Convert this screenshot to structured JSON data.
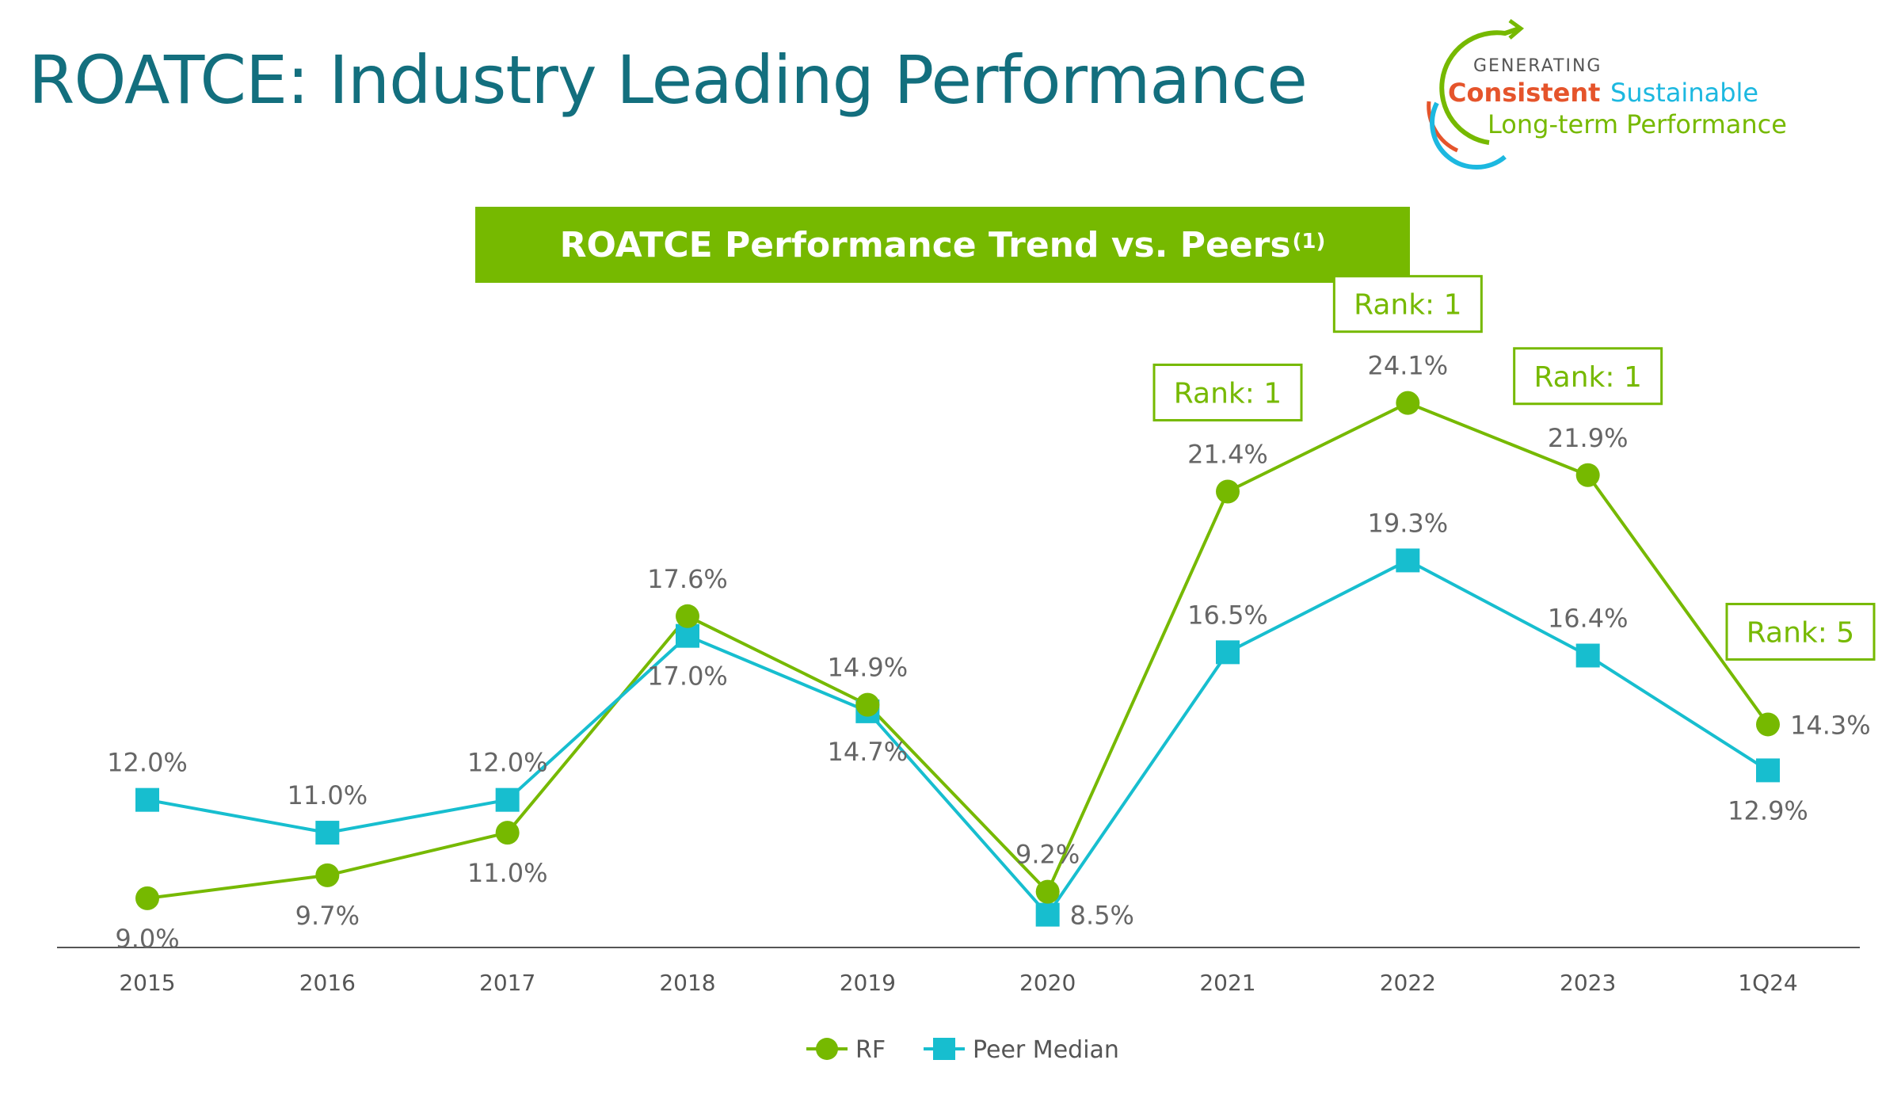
{
  "title": "ROATCE: Industry Leading Performance",
  "logo": {
    "line1": "GENERATING",
    "word_consistent": "Consistent",
    "word_sustainable": "Sustainable",
    "line3": "Long-term Performance",
    "colors": {
      "arc_green": "#76b900",
      "arc_blue": "#1cb8e0",
      "arc_orange": "#e5542b",
      "consistent": "#e5542b",
      "sustainable": "#1cb8e0",
      "longterm": "#76b900"
    }
  },
  "chart_data": {
    "type": "line",
    "title": "ROATCE Performance Trend vs. Peers",
    "title_footnote": "(1)",
    "categories": [
      "2015",
      "2016",
      "2017",
      "2018",
      "2019",
      "2020",
      "2021",
      "2022",
      "2023",
      "1Q24"
    ],
    "series": [
      {
        "name": "RF",
        "values": [
          9.0,
          9.7,
          11.0,
          17.6,
          14.9,
          9.2,
          21.4,
          24.1,
          21.9,
          14.3
        ],
        "labels": [
          "9.0%",
          "9.7%",
          "11.0%",
          "17.6%",
          "14.9%",
          "9.2%",
          "21.4%",
          "24.1%",
          "21.9%",
          "14.3%"
        ],
        "color": "#76b900",
        "marker": "circle"
      },
      {
        "name": "Peer Median",
        "values": [
          12.0,
          11.0,
          12.0,
          17.0,
          14.7,
          8.5,
          16.5,
          19.3,
          16.4,
          12.9
        ],
        "labels": [
          "12.0%",
          "11.0%",
          "12.0%",
          "17.0%",
          "14.7%",
          "8.5%",
          "16.5%",
          "19.3%",
          "16.4%",
          "12.9%"
        ],
        "color": "#17becf",
        "marker": "square"
      }
    ],
    "annotations": [
      {
        "category": "2021",
        "text": "Rank: 1"
      },
      {
        "category": "2022",
        "text": "Rank: 1"
      },
      {
        "category": "2023",
        "text": "Rank: 1"
      },
      {
        "category": "1Q24",
        "text": "Rank: 5"
      }
    ],
    "ylim": [
      7.5,
      26
    ],
    "xlabel": "",
    "ylabel": "",
    "legend": "bottom-center",
    "grid": false
  }
}
